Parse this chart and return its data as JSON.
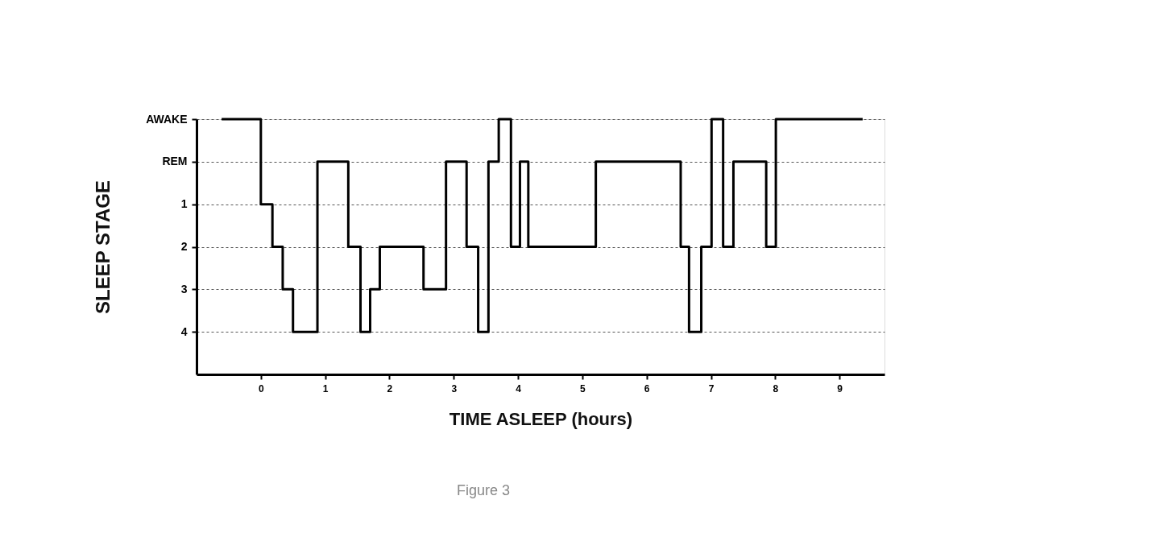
{
  "chart_data": {
    "type": "step",
    "xlabel": "TIME ASLEEP (hours)",
    "ylabel": "SLEEP STAGE",
    "x": [
      -0.61,
      0.0,
      0.18,
      0.34,
      0.5,
      0.88,
      1.36,
      1.55,
      1.7,
      1.85,
      2.53,
      2.88,
      3.2,
      3.38,
      3.54,
      3.7,
      3.89,
      4.03,
      4.16,
      5.21,
      6.53,
      6.66,
      6.85,
      7.01,
      7.19,
      7.35,
      7.86,
      8.01,
      9.36
    ],
    "series": [
      {
        "color": "#000000",
        "values": [
          -1,
          1,
          2,
          3,
          4,
          0,
          2,
          4,
          3,
          2,
          3,
          0,
          2,
          4,
          0,
          -1,
          2,
          0,
          2,
          0,
          2,
          4,
          2,
          -1,
          2,
          0,
          2,
          -1,
          -1
        ]
      }
    ],
    "xlim": [
      -1,
      9.7
    ],
    "xticks": [
      0,
      1,
      2,
      3,
      4,
      5,
      6,
      7,
      8,
      9
    ],
    "ylim": [
      5,
      -1
    ],
    "yticks": [
      {
        "value": -1,
        "label": "AWAKE"
      },
      {
        "value": 0,
        "label": "REM"
      },
      1,
      2,
      3,
      4
    ],
    "grid": "y",
    "line_style": "solid",
    "marker": "none",
    "annotations": [
      "Figure 3"
    ]
  }
}
